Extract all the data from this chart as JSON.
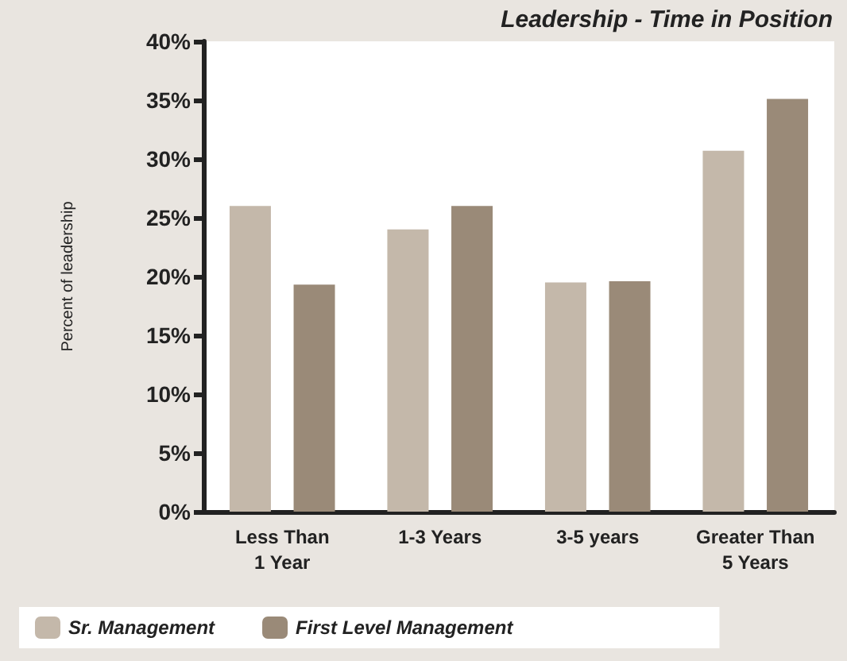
{
  "chart_data": {
    "type": "bar",
    "title": "Leadership - Time in Position",
    "ylabel": "Percent of leadership",
    "categories": [
      "Less Than\n1 Year",
      "1-3 Years",
      "3-5 years",
      "Greater Than\n5 Years"
    ],
    "series": [
      {
        "name": "Sr. Management",
        "color": "#c4b8aa",
        "values": [
          26,
          24,
          19.5,
          30.7
        ]
      },
      {
        "name": "First Level Management",
        "color": "#9a8a78",
        "values": [
          19.3,
          26,
          19.6,
          35.1
        ]
      }
    ],
    "ylim": [
      0,
      40
    ],
    "yticks": [
      {
        "value": 0,
        "label": "0%"
      },
      {
        "value": 5,
        "label": "5%"
      },
      {
        "value": 10,
        "label": "10%"
      },
      {
        "value": 15,
        "label": "15%"
      },
      {
        "value": 20,
        "label": "20%"
      },
      {
        "value": 25,
        "label": "25%"
      },
      {
        "value": 30,
        "label": "30%"
      },
      {
        "value": 35,
        "label": "35%"
      },
      {
        "value": 40,
        "label": "40%"
      }
    ],
    "grid": false,
    "legend": "bottom left"
  }
}
